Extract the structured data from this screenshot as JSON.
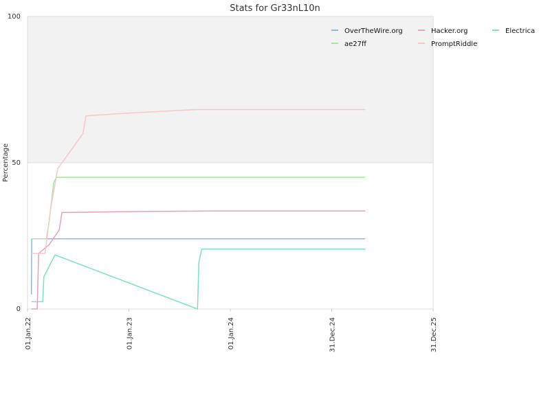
{
  "chart_data": {
    "type": "line",
    "title": "Stats for Gr33nL10n",
    "ylabel": "Percentage",
    "xlabel": "",
    "ylim": [
      0,
      100
    ],
    "xlim": [
      "2022-01-01",
      "2025-12-31"
    ],
    "y_ticks": [
      0,
      50,
      100
    ],
    "x_ticks": [
      {
        "date": "2022-01-01",
        "label": "01.Jan.22"
      },
      {
        "date": "2023-01-01",
        "label": "01.Jan.23"
      },
      {
        "date": "2024-01-01",
        "label": "01.Jan.24"
      },
      {
        "date": "2024-12-31",
        "label": "31.Dec.24"
      },
      {
        "date": "2025-12-31",
        "label": "31.Dec.25"
      }
    ],
    "shaded_band": {
      "y_from": 50,
      "y_to": 100,
      "color": "#f2f2f2"
    },
    "legend_position": "top-right",
    "series": [
      {
        "name": "OverTheWire.org",
        "color": "#8ab8e8",
        "points": [
          [
            "2022-01-15",
            5
          ],
          [
            "2022-01-16",
            24
          ],
          [
            "2022-02-01",
            24
          ],
          [
            "2022-06-01",
            24
          ],
          [
            "2024-12-01",
            24
          ],
          [
            "2025-05-01",
            24
          ]
        ]
      },
      {
        "name": "Hacker.org",
        "color": "#e8a0c0",
        "points": [
          [
            "2022-01-15",
            0
          ],
          [
            "2022-02-05",
            0
          ],
          [
            "2022-02-10",
            19
          ],
          [
            "2022-03-20",
            22
          ],
          [
            "2022-04-25",
            27
          ],
          [
            "2022-05-05",
            33
          ],
          [
            "2022-06-01",
            33
          ],
          [
            "2023-01-01",
            33.3
          ],
          [
            "2023-11-01",
            33.5
          ],
          [
            "2024-06-01",
            33.5
          ],
          [
            "2025-05-01",
            33.5
          ]
        ]
      },
      {
        "name": "Electrica",
        "color": "#7de0c8",
        "points": [
          [
            "2022-01-15",
            2.5
          ],
          [
            "2022-02-25",
            2.5
          ],
          [
            "2022-03-01",
            11
          ],
          [
            "2022-04-10",
            18.5
          ],
          [
            "2023-09-05",
            0
          ],
          [
            "2023-09-10",
            16
          ],
          [
            "2023-09-20",
            20.5
          ],
          [
            "2024-06-01",
            20.5
          ],
          [
            "2025-05-01",
            20.5
          ]
        ]
      },
      {
        "name": "ae27ff",
        "color": "#a8e6a0",
        "points": [
          [
            "2022-01-15",
            24
          ],
          [
            "2022-03-10",
            24
          ],
          [
            "2022-03-20",
            30
          ],
          [
            "2022-04-05",
            43
          ],
          [
            "2022-04-15",
            45
          ],
          [
            "2022-06-01",
            45
          ],
          [
            "2024-06-01",
            45
          ],
          [
            "2025-05-01",
            45
          ]
        ]
      },
      {
        "name": "PromptRiddle",
        "color": "#f5c8c8",
        "points": [
          [
            "2022-01-15",
            19
          ],
          [
            "2022-03-05",
            19
          ],
          [
            "2022-03-25",
            34
          ],
          [
            "2022-04-20",
            48
          ],
          [
            "2022-07-20",
            60
          ],
          [
            "2022-07-30",
            66
          ],
          [
            "2023-01-01",
            67
          ],
          [
            "2023-09-01",
            68.2
          ],
          [
            "2024-06-01",
            68.2
          ],
          [
            "2025-05-01",
            68.2
          ]
        ]
      }
    ],
    "legend_order": [
      "OverTheWire.org",
      "Hacker.org",
      "Electrica",
      "ae27ff",
      "PromptRiddle"
    ]
  }
}
